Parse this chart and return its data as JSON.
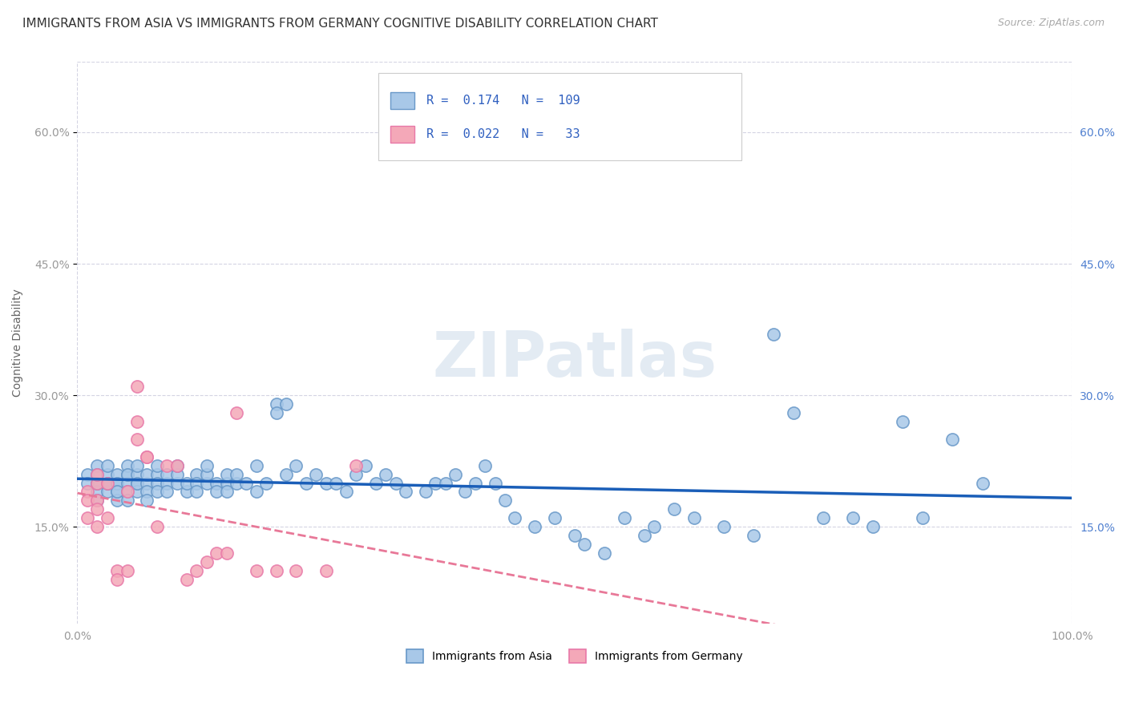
{
  "title": "IMMIGRANTS FROM ASIA VS IMMIGRANTS FROM GERMANY COGNITIVE DISABILITY CORRELATION CHART",
  "source": "Source: ZipAtlas.com",
  "ylabel": "Cognitive Disability",
  "xlim": [
    0,
    1.0
  ],
  "ylim": [
    0.04,
    0.68
  ],
  "yticks": [
    0.15,
    0.3,
    0.45,
    0.6
  ],
  "ytick_labels": [
    "15.0%",
    "30.0%",
    "45.0%",
    "60.0%"
  ],
  "legend_R_asia": "0.174",
  "legend_N_asia": "109",
  "legend_R_germany": "0.022",
  "legend_N_germany": "33",
  "color_asia": "#a8c8e8",
  "color_germany": "#f4a8b8",
  "color_asia_line": "#1a5eb8",
  "color_germany_line": "#e87898",
  "color_asia_edge": "#6898c8",
  "color_germany_edge": "#e878a8",
  "asia_x": [
    0.01,
    0.01,
    0.02,
    0.02,
    0.02,
    0.02,
    0.02,
    0.03,
    0.03,
    0.03,
    0.03,
    0.03,
    0.04,
    0.04,
    0.04,
    0.04,
    0.04,
    0.04,
    0.05,
    0.05,
    0.05,
    0.05,
    0.05,
    0.05,
    0.06,
    0.06,
    0.06,
    0.06,
    0.06,
    0.07,
    0.07,
    0.07,
    0.07,
    0.08,
    0.08,
    0.08,
    0.08,
    0.09,
    0.09,
    0.09,
    0.1,
    0.1,
    0.1,
    0.11,
    0.11,
    0.12,
    0.12,
    0.12,
    0.13,
    0.13,
    0.13,
    0.14,
    0.14,
    0.15,
    0.15,
    0.15,
    0.16,
    0.16,
    0.17,
    0.18,
    0.18,
    0.19,
    0.2,
    0.2,
    0.21,
    0.21,
    0.22,
    0.23,
    0.24,
    0.25,
    0.26,
    0.27,
    0.28,
    0.29,
    0.3,
    0.31,
    0.32,
    0.33,
    0.35,
    0.36,
    0.37,
    0.38,
    0.39,
    0.4,
    0.41,
    0.42,
    0.43,
    0.44,
    0.46,
    0.48,
    0.5,
    0.51,
    0.53,
    0.55,
    0.57,
    0.58,
    0.6,
    0.62,
    0.65,
    0.68,
    0.7,
    0.72,
    0.75,
    0.78,
    0.8,
    0.83,
    0.85,
    0.88,
    0.91
  ],
  "asia_y": [
    0.21,
    0.2,
    0.22,
    0.19,
    0.2,
    0.21,
    0.18,
    0.2,
    0.19,
    0.21,
    0.2,
    0.22,
    0.2,
    0.19,
    0.21,
    0.18,
    0.2,
    0.19,
    0.21,
    0.2,
    0.19,
    0.22,
    0.18,
    0.21,
    0.2,
    0.21,
    0.19,
    0.2,
    0.22,
    0.2,
    0.21,
    0.19,
    0.18,
    0.21,
    0.2,
    0.19,
    0.22,
    0.2,
    0.19,
    0.21,
    0.2,
    0.21,
    0.22,
    0.19,
    0.2,
    0.21,
    0.2,
    0.19,
    0.2,
    0.21,
    0.22,
    0.2,
    0.19,
    0.2,
    0.21,
    0.19,
    0.2,
    0.21,
    0.2,
    0.19,
    0.22,
    0.2,
    0.29,
    0.28,
    0.29,
    0.21,
    0.22,
    0.2,
    0.21,
    0.2,
    0.2,
    0.19,
    0.21,
    0.22,
    0.2,
    0.21,
    0.2,
    0.19,
    0.19,
    0.2,
    0.2,
    0.21,
    0.19,
    0.2,
    0.22,
    0.2,
    0.18,
    0.16,
    0.15,
    0.16,
    0.14,
    0.13,
    0.12,
    0.16,
    0.14,
    0.15,
    0.17,
    0.16,
    0.15,
    0.14,
    0.37,
    0.28,
    0.16,
    0.16,
    0.15,
    0.27,
    0.16,
    0.25,
    0.2
  ],
  "germany_x": [
    0.01,
    0.01,
    0.01,
    0.02,
    0.02,
    0.02,
    0.02,
    0.02,
    0.03,
    0.03,
    0.04,
    0.04,
    0.05,
    0.05,
    0.06,
    0.06,
    0.06,
    0.07,
    0.07,
    0.08,
    0.09,
    0.1,
    0.11,
    0.12,
    0.13,
    0.14,
    0.15,
    0.16,
    0.18,
    0.2,
    0.22,
    0.25,
    0.28
  ],
  "germany_y": [
    0.19,
    0.18,
    0.16,
    0.2,
    0.21,
    0.18,
    0.17,
    0.15,
    0.2,
    0.16,
    0.1,
    0.09,
    0.1,
    0.19,
    0.31,
    0.27,
    0.25,
    0.23,
    0.23,
    0.15,
    0.22,
    0.22,
    0.09,
    0.1,
    0.11,
    0.12,
    0.12,
    0.28,
    0.1,
    0.1,
    0.1,
    0.1,
    0.22
  ],
  "background_color": "#ffffff",
  "grid_color": "#d0d0e0",
  "title_fontsize": 11,
  "axis_label_fontsize": 10,
  "tick_fontsize": 10,
  "watermark_text": "ZIPatlas",
  "watermark_color": "#c8d8e8",
  "watermark_alpha": 0.5
}
